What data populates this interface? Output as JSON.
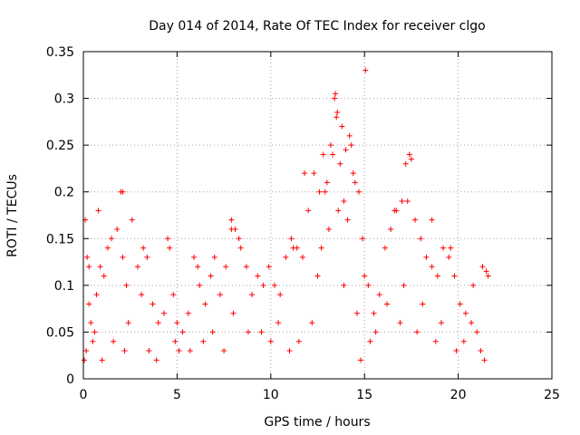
{
  "chart_data": {
    "type": "scatter",
    "title": "Day 014 of 2014, Rate Of TEC Index for receiver clgo",
    "xlabel": "GPS time / hours",
    "ylabel": "ROTI / TECUs",
    "xlim": [
      0,
      25
    ],
    "ylim": [
      0,
      0.35
    ],
    "grid": true,
    "marker": "+",
    "color": "#ff0000",
    "x_ticks": [
      0,
      5,
      10,
      15,
      20,
      25
    ],
    "x_tick_labels": [
      "0",
      "5",
      "10",
      "15",
      "20",
      "25"
    ],
    "y_ticks": [
      0,
      0.05,
      0.1,
      0.15,
      0.2,
      0.25,
      0.3,
      0.35
    ],
    "y_tick_labels": [
      "0",
      "0.05",
      "0.1",
      "0.15",
      "0.2",
      "0.25",
      "0.3",
      "0.35"
    ],
    "series": [
      {
        "name": "ROTI",
        "x": [
          0.1,
          0.2,
          0.3,
          0.4,
          0.5,
          0.7,
          0.9,
          1.1,
          1.3,
          1.5,
          1.8,
          2.0,
          2.1,
          2.3,
          2.6,
          2.9,
          3.1,
          3.4,
          3.7,
          4.0,
          4.3,
          4.5,
          4.8,
          5.0,
          5.3,
          5.6,
          5.9,
          6.2,
          6.5,
          6.8,
          7.0,
          7.3,
          7.6,
          7.9,
          8.1,
          8.4,
          8.7,
          9.0,
          9.3,
          9.6,
          9.9,
          10.2,
          10.5,
          10.8,
          11.1,
          11.4,
          11.7,
          12.0,
          12.3,
          12.6,
          12.8,
          13.0,
          13.2,
          13.4,
          13.5,
          13.7,
          13.9,
          14.1,
          14.3,
          14.5,
          14.7,
          14.9,
          15.0,
          15.2,
          15.5,
          15.8,
          16.1,
          16.4,
          16.7,
          17.0,
          17.2,
          17.4,
          17.7,
          18.0,
          18.3,
          18.6,
          18.9,
          19.2,
          19.5,
          19.8,
          20.1,
          20.4,
          20.7,
          21.0,
          21.3,
          21.6,
          0.3,
          0.8,
          2.1,
          3.2,
          4.6,
          6.1,
          7.9,
          8.3,
          11.2,
          11.8,
          12.9,
          13.3,
          13.45,
          13.55,
          13.8,
          14.0,
          14.2,
          14.4,
          15.05,
          16.6,
          17.3,
          17.5,
          18.6,
          19.6,
          20.8,
          21.5,
          0.15,
          0.6,
          1.6,
          2.4,
          3.5,
          4.9,
          5.7,
          6.9,
          8.0,
          9.5,
          10.4,
          11.5,
          12.5,
          13.1,
          13.6,
          14.6,
          15.3,
          16.2,
          17.1,
          18.1,
          19.1,
          20.3,
          21.2,
          0.05,
          1.0,
          2.2,
          3.9,
          5.1,
          6.4,
          7.5,
          8.8,
          10.0,
          11.0,
          12.2,
          12.7,
          13.9,
          14.8,
          15.6,
          16.9,
          17.8,
          18.8,
          19.9,
          21.4
        ],
        "y": [
          0.17,
          0.13,
          0.08,
          0.06,
          0.04,
          0.09,
          0.12,
          0.11,
          0.14,
          0.15,
          0.16,
          0.2,
          0.13,
          0.1,
          0.17,
          0.12,
          0.09,
          0.13,
          0.08,
          0.06,
          0.07,
          0.15,
          0.09,
          0.06,
          0.05,
          0.07,
          0.13,
          0.1,
          0.08,
          0.11,
          0.13,
          0.09,
          0.12,
          0.17,
          0.16,
          0.14,
          0.12,
          0.09,
          0.11,
          0.1,
          0.12,
          0.1,
          0.09,
          0.13,
          0.15,
          0.14,
          0.13,
          0.18,
          0.22,
          0.2,
          0.24,
          0.21,
          0.25,
          0.3,
          0.28,
          0.23,
          0.19,
          0.17,
          0.25,
          0.21,
          0.2,
          0.15,
          0.11,
          0.1,
          0.07,
          0.09,
          0.14,
          0.16,
          0.18,
          0.19,
          0.23,
          0.24,
          0.17,
          0.15,
          0.13,
          0.12,
          0.11,
          0.14,
          0.13,
          0.11,
          0.08,
          0.07,
          0.06,
          0.05,
          0.12,
          0.11,
          0.12,
          0.18,
          0.2,
          0.14,
          0.14,
          0.12,
          0.16,
          0.15,
          0.14,
          0.22,
          0.2,
          0.24,
          0.305,
          0.285,
          0.27,
          0.245,
          0.26,
          0.22,
          0.33,
          0.18,
          0.19,
          0.235,
          0.17,
          0.14,
          0.1,
          0.115,
          0.03,
          0.05,
          0.04,
          0.06,
          0.03,
          0.04,
          0.03,
          0.05,
          0.07,
          0.05,
          0.06,
          0.04,
          0.11,
          0.16,
          0.18,
          0.07,
          0.04,
          0.08,
          0.1,
          0.08,
          0.06,
          0.04,
          0.03,
          0.02,
          0.02,
          0.03,
          0.02,
          0.03,
          0.04,
          0.03,
          0.05,
          0.04,
          0.03,
          0.06,
          0.14,
          0.1,
          0.02,
          0.05,
          0.06,
          0.05,
          0.04,
          0.03,
          0.02
        ]
      }
    ]
  }
}
